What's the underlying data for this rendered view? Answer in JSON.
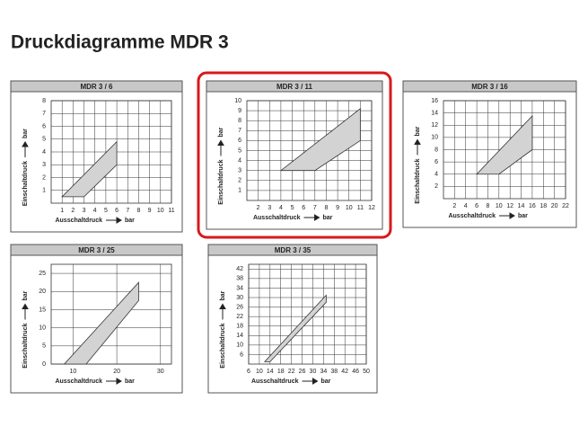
{
  "title": "Druckdiagramme MDR 3",
  "chart_data": [
    {
      "type": "area",
      "title": "MDR 3 / 6",
      "xlabel": "Ausschaltdruck",
      "ylabel": "Einschaltdruck",
      "x_unit": "bar",
      "y_unit": "bar",
      "x": [
        1,
        3,
        6,
        6
      ],
      "y": [
        0.5,
        0.5,
        3,
        4.8
      ],
      "color": "#d3d3d3",
      "xlim": [
        0,
        11
      ],
      "xticks": [
        1,
        2,
        3,
        4,
        5,
        6,
        7,
        8,
        9,
        10,
        11
      ],
      "ylim": [
        0,
        8
      ],
      "yticks": [
        1,
        2,
        3,
        4,
        5,
        6,
        7,
        8
      ],
      "grid": true,
      "highlighted": false
    },
    {
      "type": "area",
      "title": "MDR 3 / 11",
      "xlabel": "Ausschaltdruck",
      "ylabel": "Einschaltdruck",
      "x_unit": "bar",
      "y_unit": "bar",
      "x": [
        4,
        7,
        11,
        11
      ],
      "y": [
        3,
        3,
        6,
        9.2
      ],
      "color": "#d3d3d3",
      "xlim": [
        1,
        12
      ],
      "xticks": [
        2,
        3,
        4,
        5,
        6,
        7,
        8,
        9,
        10,
        11,
        12
      ],
      "ylim": [
        0,
        10
      ],
      "yticks": [
        1,
        2,
        3,
        4,
        5,
        6,
        7,
        8,
        9,
        10
      ],
      "grid": true,
      "highlighted": true
    },
    {
      "type": "area",
      "title": "MDR 3 / 16",
      "xlabel": "Ausschaltdruck",
      "ylabel": "Einschaltdruck",
      "x_unit": "bar",
      "y_unit": "bar",
      "x": [
        6,
        10,
        16,
        16
      ],
      "y": [
        4,
        4,
        8,
        13.5
      ],
      "color": "#d3d3d3",
      "xlim": [
        0,
        22
      ],
      "xticks": [
        2,
        4,
        6,
        8,
        10,
        12,
        14,
        16,
        18,
        20,
        22
      ],
      "ylim": [
        0,
        16
      ],
      "yticks": [
        2,
        4,
        6,
        8,
        10,
        12,
        14,
        16
      ],
      "grid": true,
      "highlighted": false
    },
    {
      "type": "area",
      "title": "MDR 3 / 25",
      "xlabel": "Ausschaltdruck",
      "ylabel": "Einschaltdruck",
      "x_unit": "bar",
      "y_unit": "bar",
      "x": [
        8,
        13,
        25,
        25
      ],
      "y": [
        0,
        0,
        17.5,
        22.5
      ],
      "color": "#d3d3d3",
      "xlim": [
        5,
        32.5
      ],
      "xticks": [
        10,
        20,
        30
      ],
      "ylim": [
        0,
        27.5
      ],
      "yticks": [
        0,
        5,
        10,
        15,
        20,
        25
      ],
      "grid": true,
      "highlighted": false
    },
    {
      "type": "area",
      "title": "MDR 3 / 35",
      "xlabel": "Ausschaltdruck",
      "ylabel": "Einschaltdruck",
      "x_unit": "bar",
      "y_unit": "bar",
      "x": [
        12,
        14,
        35,
        35
      ],
      "y": [
        3,
        3,
        28,
        31
      ],
      "color": "#d3d3d3",
      "xlim": [
        6,
        50
      ],
      "xticks": [
        6,
        10,
        14,
        18,
        22,
        26,
        30,
        34,
        38,
        42,
        46,
        50
      ],
      "ylim": [
        2,
        44
      ],
      "yticks": [
        6,
        10,
        14,
        18,
        22,
        26,
        30,
        34,
        38,
        42
      ],
      "grid": true,
      "highlighted": false
    }
  ]
}
